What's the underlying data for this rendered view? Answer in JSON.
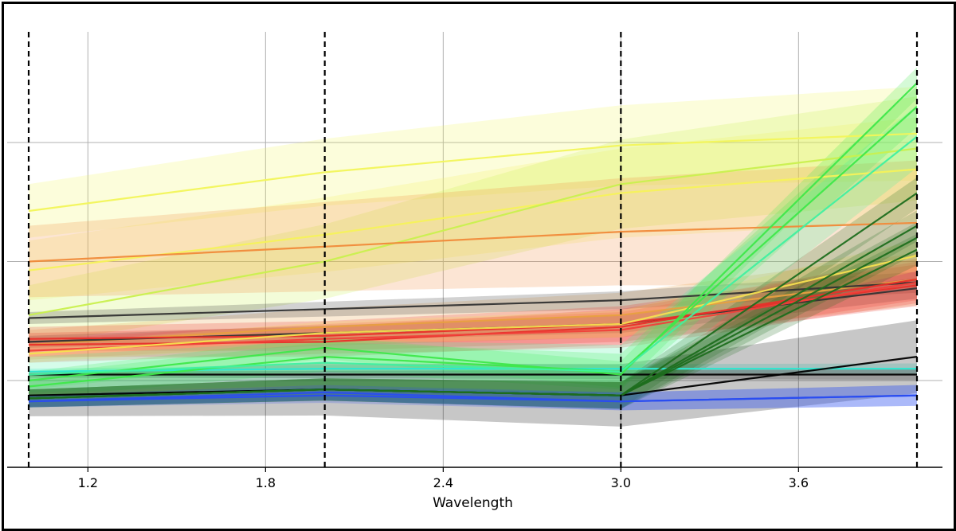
{
  "chart_data": {
    "type": "line",
    "title": "",
    "xlabel": "Wavelength",
    "ylabel": "",
    "xlim": [
      1.0,
      4.0
    ],
    "ylim": [
      -0.25,
      1.25
    ],
    "x_ticks": [
      1.2,
      1.8,
      2.4,
      3.0,
      3.6
    ],
    "x_tick_labels": [
      "1.2",
      "1.8",
      "2.4",
      "3.0",
      "3.6"
    ],
    "y_gridlines": [
      0.0,
      0.4,
      0.8
    ],
    "grid": true,
    "legend": "none",
    "sample_points": [
      1.0,
      2.0,
      3.0,
      4.0
    ],
    "series": [
      {
        "color": "#f2f55a",
        "values": [
          0.57,
          0.7,
          0.79,
          0.83
        ],
        "band": 0.09
      },
      {
        "color": "#f5f25a",
        "values": [
          0.37,
          0.49,
          0.63,
          0.71
        ],
        "band": 0.1
      },
      {
        "color": "#c9f04e",
        "values": [
          0.22,
          0.4,
          0.66,
          0.78
        ],
        "band": 0.1
      },
      {
        "color": "#f08a3a",
        "values": [
          0.4,
          0.45,
          0.5,
          0.53
        ],
        "band": 0.12
      },
      {
        "color": "#e8a040",
        "values": [
          0.12,
          0.18,
          0.22,
          0.34
        ],
        "band": 0.05
      },
      {
        "color": "#333333",
        "values": [
          0.21,
          0.24,
          0.27,
          0.33
        ],
        "band": 0.02
      },
      {
        "color": "#333333",
        "values": [
          0.13,
          0.16,
          0.19,
          0.31
        ],
        "band": 0.02
      },
      {
        "color": "#e8302a",
        "values": [
          0.14,
          0.15,
          0.19,
          0.32
        ],
        "band": 0.04
      },
      {
        "color": "#e8302a",
        "values": [
          0.12,
          0.13,
          0.18,
          0.34
        ],
        "band": 0.04
      },
      {
        "color": "#f0403a",
        "values": [
          0.1,
          0.14,
          0.17,
          0.33
        ],
        "band": 0.04
      },
      {
        "color": "#f5e050",
        "values": [
          0.09,
          0.16,
          0.19,
          0.42
        ],
        "band": 0.03
      },
      {
        "color": "#2ee6d0",
        "values": [
          0.03,
          0.04,
          0.04,
          0.04
        ],
        "band": 0.01
      },
      {
        "color": "#000000",
        "values": [
          0.02,
          0.02,
          0.02,
          0.02
        ],
        "band": 0.01
      },
      {
        "color": "#000000",
        "values": [
          -0.05,
          -0.03,
          -0.05,
          0.08
        ],
        "band": 0.07
      },
      {
        "color": "#3ee84a",
        "values": [
          0.0,
          0.11,
          0.02,
          1.0
        ],
        "band": 0.03
      },
      {
        "color": "#3ee84a",
        "values": [
          -0.02,
          0.08,
          0.03,
          0.92
        ],
        "band": 0.04
      },
      {
        "color": "#40f0a0",
        "values": [
          0.02,
          0.06,
          0.03,
          0.82
        ],
        "band": 0.06
      },
      {
        "color": "#1e6e1e",
        "values": [
          -0.06,
          -0.03,
          -0.05,
          0.63
        ],
        "band": 0.03
      },
      {
        "color": "#1e6e1e",
        "values": [
          -0.06,
          -0.03,
          -0.05,
          0.52
        ],
        "band": 0.03
      },
      {
        "color": "#1e6e1e",
        "values": [
          -0.06,
          -0.03,
          -0.05,
          0.48
        ],
        "band": 0.03
      },
      {
        "color": "#1e6e1e",
        "values": [
          -0.06,
          -0.03,
          -0.05,
          0.44
        ],
        "band": 0.03
      },
      {
        "color": "#2a4df0",
        "values": [
          -0.07,
          -0.05,
          -0.07,
          -0.05
        ],
        "band": 0.02
      },
      {
        "color": "#2a4df0",
        "values": [
          -0.07,
          -0.04,
          -0.07,
          -0.05
        ],
        "band": 0.02
      }
    ]
  }
}
